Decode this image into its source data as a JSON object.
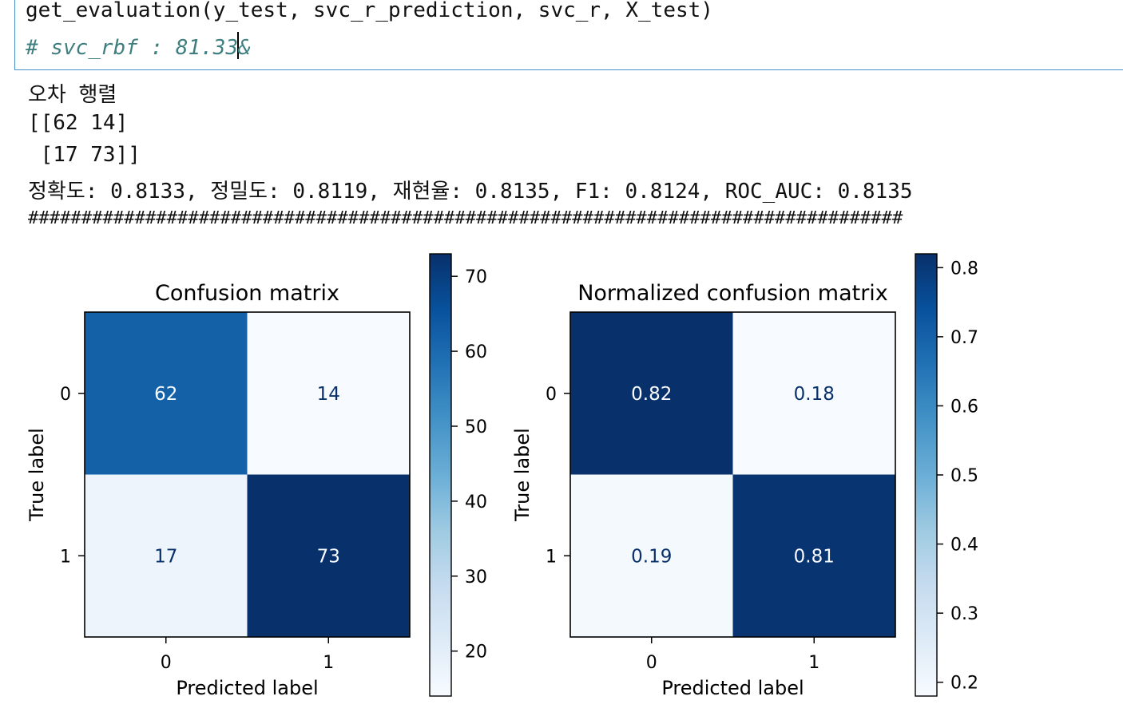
{
  "code": {
    "line1": "get_evaluation(y_test, svc_r_prediction, svc_r, X_test)",
    "line2_before_cursor": "# svc_rbf : 81.33",
    "line2_after_cursor": "&"
  },
  "output": {
    "title": "오차 행렬",
    "matrix_row1": "[[62 14]",
    "matrix_row2": " [17 73]]",
    "metrics": "정확도: 0.8133, 정밀도: 0.8119, 재현율: 0.8135, F1: 0.8124, ROC_AUC: 0.8135",
    "separator": "##################################################################################"
  },
  "colors": {
    "cmap_low": "#f7fbff",
    "cmap_high": "#08306b",
    "comment": "#3f7f7f",
    "cell_border": "#4a90c8"
  },
  "chart_data": [
    {
      "type": "heatmap",
      "title": "Confusion matrix",
      "xlabel": "Predicted label",
      "ylabel": "True label",
      "x_ticks": [
        "0",
        "1"
      ],
      "y_ticks": [
        "0",
        "1"
      ],
      "values": [
        [
          62,
          14
        ],
        [
          17,
          73
        ]
      ],
      "cell_labels": [
        [
          "62",
          "14"
        ],
        [
          "17",
          "73"
        ]
      ],
      "vmin": 14,
      "vmax": 73,
      "colorbar_ticks": [
        20,
        30,
        40,
        50,
        60,
        70
      ],
      "colorbar_labels": [
        "20",
        "30",
        "40",
        "50",
        "60",
        "70"
      ]
    },
    {
      "type": "heatmap",
      "title": "Normalized confusion matrix",
      "xlabel": "Predicted label",
      "ylabel": "True label",
      "x_ticks": [
        "0",
        "1"
      ],
      "y_ticks": [
        "0",
        "1"
      ],
      "values": [
        [
          0.82,
          0.18
        ],
        [
          0.19,
          0.81
        ]
      ],
      "cell_labels": [
        [
          "0.82",
          "0.18"
        ],
        [
          "0.19",
          "0.81"
        ]
      ],
      "vmin": 0.18,
      "vmax": 0.82,
      "colorbar_ticks": [
        0.2,
        0.3,
        0.4,
        0.5,
        0.6,
        0.7,
        0.8
      ],
      "colorbar_labels": [
        "0.2",
        "0.3",
        "0.4",
        "0.5",
        "0.6",
        "0.7",
        "0.8"
      ]
    }
  ]
}
